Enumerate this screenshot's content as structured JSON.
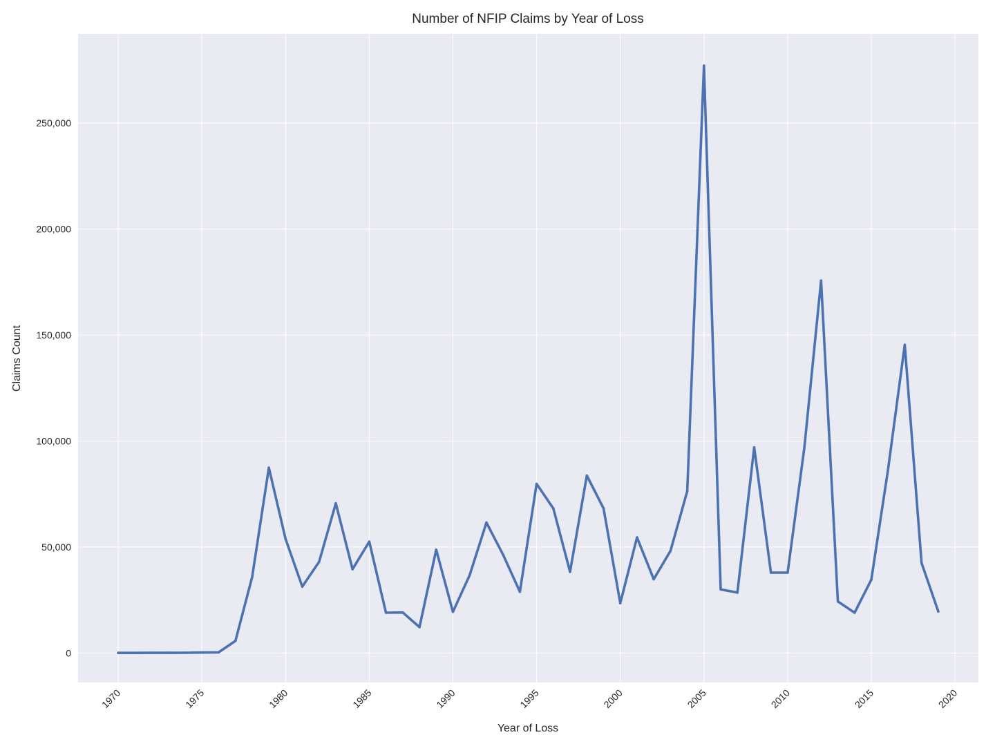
{
  "chart_data": {
    "type": "line",
    "title": "Number of NFIP Claims by Year of Loss",
    "xlabel": "Year of Loss",
    "ylabel": "Claims Count",
    "xlim": [
      1967.6,
      2021.4
    ],
    "ylim": [
      -13900,
      292100
    ],
    "x_ticks": [
      "1970",
      "1975",
      "1980",
      "1985",
      "1990",
      "1995",
      "2000",
      "2005",
      "2010",
      "2015",
      "2020"
    ],
    "y_ticks": [
      "0",
      "50,000",
      "100,000",
      "150,000",
      "200,000",
      "250,000"
    ],
    "grid": true,
    "legend": "none",
    "colors": {
      "background": "#EAEAF2",
      "grid": "#FFFFFF",
      "line": "#4C72B0"
    },
    "series": [
      {
        "x": [
          1970,
          1971,
          1972,
          1973,
          1974,
          1975,
          1976,
          1977,
          1978,
          1979,
          1980,
          1981,
          1982,
          1983,
          1984,
          1985,
          1986,
          1987,
          1988,
          1989,
          1990,
          1991,
          1992,
          1993,
          1994,
          1995,
          1996,
          1997,
          1998,
          1999,
          2000,
          2001,
          2002,
          2003,
          2004,
          2005,
          2006,
          2007,
          2008,
          2009,
          2010,
          2011,
          2012,
          2013,
          2014,
          2015,
          2016,
          2017,
          2018,
          2019
        ],
        "values": [
          50,
          60,
          70,
          80,
          100,
          200,
          300,
          5700,
          35800,
          87400,
          53800,
          31300,
          43000,
          70600,
          39500,
          52500,
          19000,
          19100,
          12200,
          48700,
          19400,
          36700,
          61500,
          46300,
          28900,
          79800,
          68200,
          38300,
          83700,
          68200,
          23500,
          54500,
          34800,
          48200,
          76300,
          277100,
          30000,
          28500,
          97000,
          37900,
          37900,
          96900,
          175700,
          24300,
          19000,
          34600,
          86500,
          145400,
          42500,
          19600
        ]
      }
    ]
  }
}
